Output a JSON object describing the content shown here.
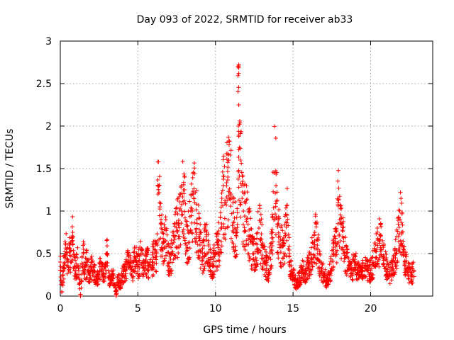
{
  "chart_data": {
    "type": "scatter",
    "title": "Day 093 of 2022, SRMTID for receiver ab33",
    "xlabel": "GPS time / hours",
    "ylabel": "SRMTID / TECUs",
    "xlim": [
      0,
      24
    ],
    "ylim": [
      0,
      3
    ],
    "xticks": [
      0,
      5,
      10,
      15,
      20
    ],
    "yticks": [
      0,
      0.5,
      1,
      1.5,
      2,
      2.5,
      3
    ],
    "xtick_labels": [
      "0",
      "5",
      "10",
      "15",
      "20"
    ],
    "ytick_labels": [
      "0",
      "0.5",
      "1",
      "1.5",
      "2",
      "2.5",
      "3"
    ],
    "grid": true,
    "marker": "+",
    "color": "#ff0000",
    "series": [
      {
        "name": "ab33",
        "points": [
          [
            0.0,
            0.4
          ],
          [
            0.1,
            0.05
          ],
          [
            0.2,
            0.3
          ],
          [
            0.3,
            0.45
          ],
          [
            0.4,
            0.55
          ],
          [
            0.5,
            0.35
          ],
          [
            0.6,
            0.6
          ],
          [
            0.7,
            0.4
          ],
          [
            0.8,
            0.75
          ],
          [
            0.9,
            0.35
          ],
          [
            1.0,
            0.3
          ],
          [
            1.1,
            0.45
          ],
          [
            1.2,
            0.25
          ],
          [
            1.3,
            0.0
          ],
          [
            1.4,
            0.35
          ],
          [
            1.5,
            0.5
          ],
          [
            1.6,
            0.3
          ],
          [
            1.7,
            0.4
          ],
          [
            1.8,
            0.3
          ],
          [
            1.9,
            0.2
          ],
          [
            2.0,
            0.35
          ],
          [
            2.2,
            0.3
          ],
          [
            2.3,
            0.15
          ],
          [
            2.5,
            0.25
          ],
          [
            2.6,
            0.4
          ],
          [
            2.8,
            0.2
          ],
          [
            3.0,
            0.5
          ],
          [
            3.1,
            0.3
          ],
          [
            3.2,
            0.15
          ],
          [
            3.4,
            0.25
          ],
          [
            3.6,
            0.0
          ],
          [
            3.7,
            0.2
          ],
          [
            3.9,
            0.15
          ],
          [
            4.0,
            0.25
          ],
          [
            4.2,
            0.3
          ],
          [
            4.3,
            0.4
          ],
          [
            4.5,
            0.35
          ],
          [
            4.6,
            0.25
          ],
          [
            4.8,
            0.45
          ],
          [
            5.0,
            0.35
          ],
          [
            5.2,
            0.5
          ],
          [
            5.4,
            0.3
          ],
          [
            5.6,
            0.4
          ],
          [
            5.8,
            0.35
          ],
          [
            6.0,
            0.45
          ],
          [
            6.2,
            0.5
          ],
          [
            6.3,
            1.2
          ],
          [
            6.4,
            1.1
          ],
          [
            6.5,
            0.8
          ],
          [
            6.6,
            0.55
          ],
          [
            6.8,
            0.65
          ],
          [
            7.0,
            0.4
          ],
          [
            7.2,
            0.5
          ],
          [
            7.4,
            0.7
          ],
          [
            7.6,
            0.85
          ],
          [
            7.8,
            1.0
          ],
          [
            8.0,
            1.25
          ],
          [
            8.1,
            0.6
          ],
          [
            8.3,
            0.75
          ],
          [
            8.5,
            1.0
          ],
          [
            8.6,
            1.15
          ],
          [
            8.8,
            0.9
          ],
          [
            9.0,
            0.6
          ],
          [
            9.2,
            0.45
          ],
          [
            9.4,
            0.7
          ],
          [
            9.6,
            0.4
          ],
          [
            9.8,
            0.35
          ],
          [
            10.0,
            0.5
          ],
          [
            10.2,
            0.6
          ],
          [
            10.4,
            0.85
          ],
          [
            10.5,
            1.3
          ],
          [
            10.6,
            1.1
          ],
          [
            10.8,
            1.4
          ],
          [
            11.0,
            1.2
          ],
          [
            11.2,
            0.8
          ],
          [
            11.4,
            0.75
          ],
          [
            11.45,
            2.7
          ],
          [
            11.5,
            2.62
          ],
          [
            11.48,
            2.0
          ],
          [
            11.5,
            1.88
          ],
          [
            11.6,
            1.6
          ],
          [
            11.7,
            1.3
          ],
          [
            11.8,
            1.0
          ],
          [
            12.0,
            0.9
          ],
          [
            12.2,
            0.7
          ],
          [
            12.4,
            0.5
          ],
          [
            12.6,
            0.45
          ],
          [
            12.8,
            0.8
          ],
          [
            13.0,
            0.6
          ],
          [
            13.2,
            0.4
          ],
          [
            13.4,
            0.3
          ],
          [
            13.6,
            0.55
          ],
          [
            13.8,
            1.45
          ],
          [
            13.9,
            1.3
          ],
          [
            14.0,
            0.85
          ],
          [
            14.2,
            0.6
          ],
          [
            14.4,
            0.5
          ],
          [
            14.6,
            0.95
          ],
          [
            14.8,
            0.35
          ],
          [
            15.0,
            0.25
          ],
          [
            15.2,
            0.15
          ],
          [
            15.4,
            0.2
          ],
          [
            15.6,
            0.3
          ],
          [
            15.8,
            0.25
          ],
          [
            16.0,
            0.35
          ],
          [
            16.2,
            0.45
          ],
          [
            16.4,
            0.75
          ],
          [
            16.6,
            0.55
          ],
          [
            16.8,
            0.3
          ],
          [
            17.0,
            0.25
          ],
          [
            17.2,
            0.15
          ],
          [
            17.4,
            0.3
          ],
          [
            17.6,
            0.5
          ],
          [
            17.8,
            0.6
          ],
          [
            17.9,
            1.1
          ],
          [
            18.0,
            0.9
          ],
          [
            18.2,
            0.7
          ],
          [
            18.4,
            0.45
          ],
          [
            18.6,
            0.35
          ],
          [
            18.8,
            0.3
          ],
          [
            19.0,
            0.4
          ],
          [
            19.2,
            0.3
          ],
          [
            19.4,
            0.25
          ],
          [
            19.6,
            0.35
          ],
          [
            19.8,
            0.3
          ],
          [
            20.0,
            0.3
          ],
          [
            20.2,
            0.4
          ],
          [
            20.4,
            0.55
          ],
          [
            20.6,
            0.65
          ],
          [
            20.8,
            0.45
          ],
          [
            21.0,
            0.35
          ],
          [
            21.2,
            0.25
          ],
          [
            21.4,
            0.3
          ],
          [
            21.6,
            0.45
          ],
          [
            21.8,
            0.7
          ],
          [
            21.9,
            0.9
          ],
          [
            22.0,
            0.75
          ],
          [
            22.2,
            0.4
          ],
          [
            22.4,
            0.3
          ],
          [
            22.6,
            0.25
          ],
          [
            22.8,
            0.3
          ]
        ]
      }
    ]
  }
}
